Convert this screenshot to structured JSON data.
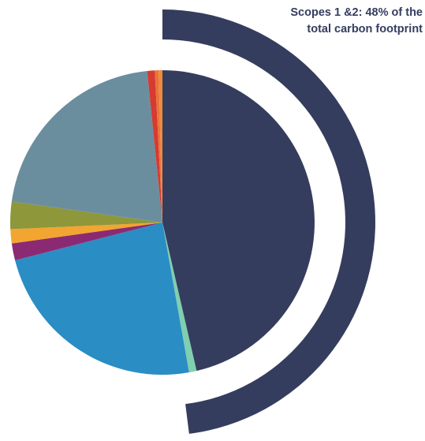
{
  "chart_data": {
    "type": "pie",
    "annotation": {
      "line1": "Scopes 1 &2: 48% of the",
      "line2": "total carbon footprint"
    },
    "highlight_percent": 48,
    "colors": {
      "highlight_arc": "#353d5e",
      "background": "#ffffff"
    },
    "slices": [
      {
        "value": 46.4,
        "color": "#353d5e"
      },
      {
        "value": 0.8,
        "color": "#7fcfb0"
      },
      {
        "value": 23.8,
        "color": "#2a8dc4"
      },
      {
        "value": 1.8,
        "color": "#8b2a73"
      },
      {
        "value": 1.5,
        "color": "#f2a530"
      },
      {
        "value": 2.9,
        "color": "#8e973a"
      },
      {
        "value": 21.2,
        "color": "#6b8e9f"
      },
      {
        "value": 0.8,
        "color": "#d63a30"
      },
      {
        "value": 0.4,
        "color": "#e8743b"
      },
      {
        "value": 0.4,
        "color": "#f08a3a"
      }
    ]
  }
}
